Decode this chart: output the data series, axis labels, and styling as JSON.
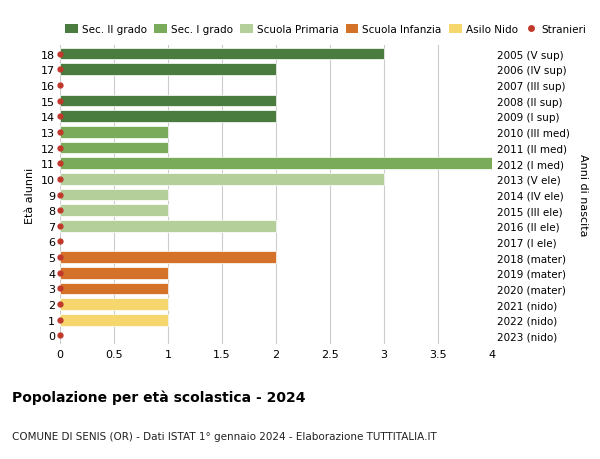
{
  "ages": [
    18,
    17,
    16,
    15,
    14,
    13,
    12,
    11,
    10,
    9,
    8,
    7,
    6,
    5,
    4,
    3,
    2,
    1,
    0
  ],
  "right_labels": [
    "2005 (V sup)",
    "2006 (IV sup)",
    "2007 (III sup)",
    "2008 (II sup)",
    "2009 (I sup)",
    "2010 (III med)",
    "2011 (II med)",
    "2012 (I med)",
    "2013 (V ele)",
    "2014 (IV ele)",
    "2015 (III ele)",
    "2016 (II ele)",
    "2017 (I ele)",
    "2018 (mater)",
    "2019 (mater)",
    "2020 (mater)",
    "2021 (nido)",
    "2022 (nido)",
    "2023 (nido)"
  ],
  "values": [
    3,
    2,
    0,
    2,
    2,
    1,
    1,
    4,
    3,
    1,
    1,
    2,
    0,
    2,
    1,
    1,
    1,
    1,
    0
  ],
  "bar_colors": [
    "#4a7c3f",
    "#4a7c3f",
    "#4a7c3f",
    "#4a7c3f",
    "#4a7c3f",
    "#7aab5a",
    "#7aab5a",
    "#7aab5a",
    "#b5cf9a",
    "#b5cf9a",
    "#b5cf9a",
    "#b5cf9a",
    "#b5cf9a",
    "#d4722a",
    "#d4722a",
    "#d4722a",
    "#f5d76e",
    "#f5d76e",
    "#f5d76e"
  ],
  "stranieri_dots": [
    18,
    17,
    16,
    15,
    14,
    13,
    12,
    11,
    10,
    9,
    8,
    7,
    6,
    5,
    4,
    3,
    2,
    1,
    0
  ],
  "legend_labels": [
    "Sec. II grado",
    "Sec. I grado",
    "Scuola Primaria",
    "Scuola Infanzia",
    "Asilo Nido",
    "Stranieri"
  ],
  "legend_colors": [
    "#4a7c3f",
    "#7aab5a",
    "#b5cf9a",
    "#d4722a",
    "#f5d76e",
    "#c0392b"
  ],
  "title": "Popolazione per età scolastica - 2024",
  "subtitle": "COMUNE DI SENIS (OR) - Dati ISTAT 1° gennaio 2024 - Elaborazione TUTTITALIA.IT",
  "ylabel_left": "Età alunni",
  "ylabel_right": "Anni di nascita",
  "xlim": [
    0,
    4.0
  ],
  "xticks": [
    0,
    0.5,
    1.0,
    1.5,
    2.0,
    2.5,
    3.0,
    3.5,
    4.0
  ],
  "bg_color": "#ffffff",
  "grid_color": "#cccccc",
  "bar_height": 0.75
}
